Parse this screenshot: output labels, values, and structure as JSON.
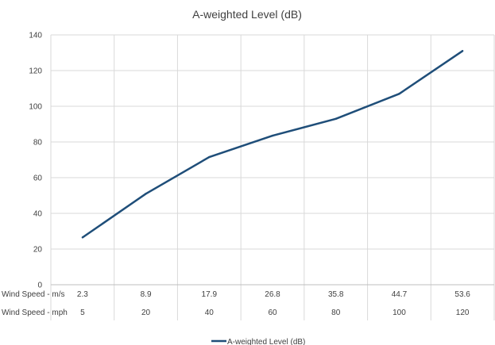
{
  "chart_data": {
    "type": "line",
    "title": "A-weighted Level (dB)",
    "categories": [
      "2.3",
      "8.9",
      "17.9",
      "26.8",
      "35.8",
      "44.7",
      "53.6"
    ],
    "secondary_categories": [
      "5",
      "20",
      "40",
      "60",
      "80",
      "100",
      "120"
    ],
    "category_row_labels": [
      "Wind Speed - m/s",
      "Wind Speed - mph"
    ],
    "series": [
      {
        "name": "A-weighted Level (dB)",
        "values": [
          26.5,
          51,
          71.5,
          83.5,
          93,
          107,
          131
        ],
        "color": "#1f4e79"
      }
    ],
    "ylim": [
      0,
      140
    ],
    "yticks": [
      "0",
      "20",
      "40",
      "60",
      "80",
      "100",
      "120",
      "140"
    ],
    "grid": "vertical and horizontal",
    "legend": "bottom-center"
  }
}
